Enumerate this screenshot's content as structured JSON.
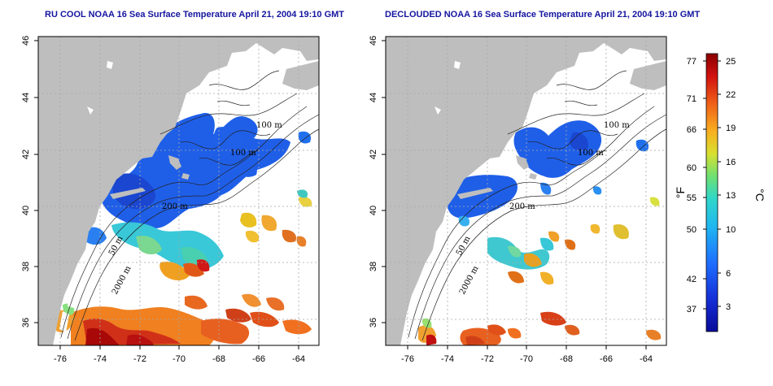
{
  "panels": [
    {
      "id": "left",
      "title": "RU COOL NOAA 16 Sea Surface Temperature April 21, 2004 19:10 GMT"
    },
    {
      "id": "right",
      "title": "DECLOUDED NOAA 16 Sea Surface Temperature April 21, 2004 19:10 GMT"
    }
  ],
  "axes": {
    "lat_ticks": [
      "46",
      "44",
      "42",
      "40",
      "38",
      "36"
    ],
    "lon_ticks": [
      "-76",
      "-74",
      "-72",
      "-70",
      "-68",
      "-66",
      "-64"
    ]
  },
  "contour_labels": {
    "left": [
      "100 m",
      "100 m",
      "200 m",
      "50 m",
      "2000 m"
    ],
    "right": [
      "100 m",
      "100 m",
      "200 m",
      "50 m",
      "2000 m"
    ]
  },
  "colorbar": {
    "fahrenheit_ticks": [
      "77",
      "71",
      "66",
      "60",
      "55",
      "50",
      "42",
      "37"
    ],
    "celsius_ticks": [
      "25",
      "22",
      "19",
      "16",
      "13",
      "10",
      "6",
      "3"
    ],
    "fahrenheit_unit": "°F",
    "celsius_unit": "°C"
  },
  "colors": {
    "land": "#bebebe",
    "ocean": "#ffffff",
    "title": "#1515a0",
    "cold": "#0a0a9a",
    "warm": "#8a0000"
  }
}
